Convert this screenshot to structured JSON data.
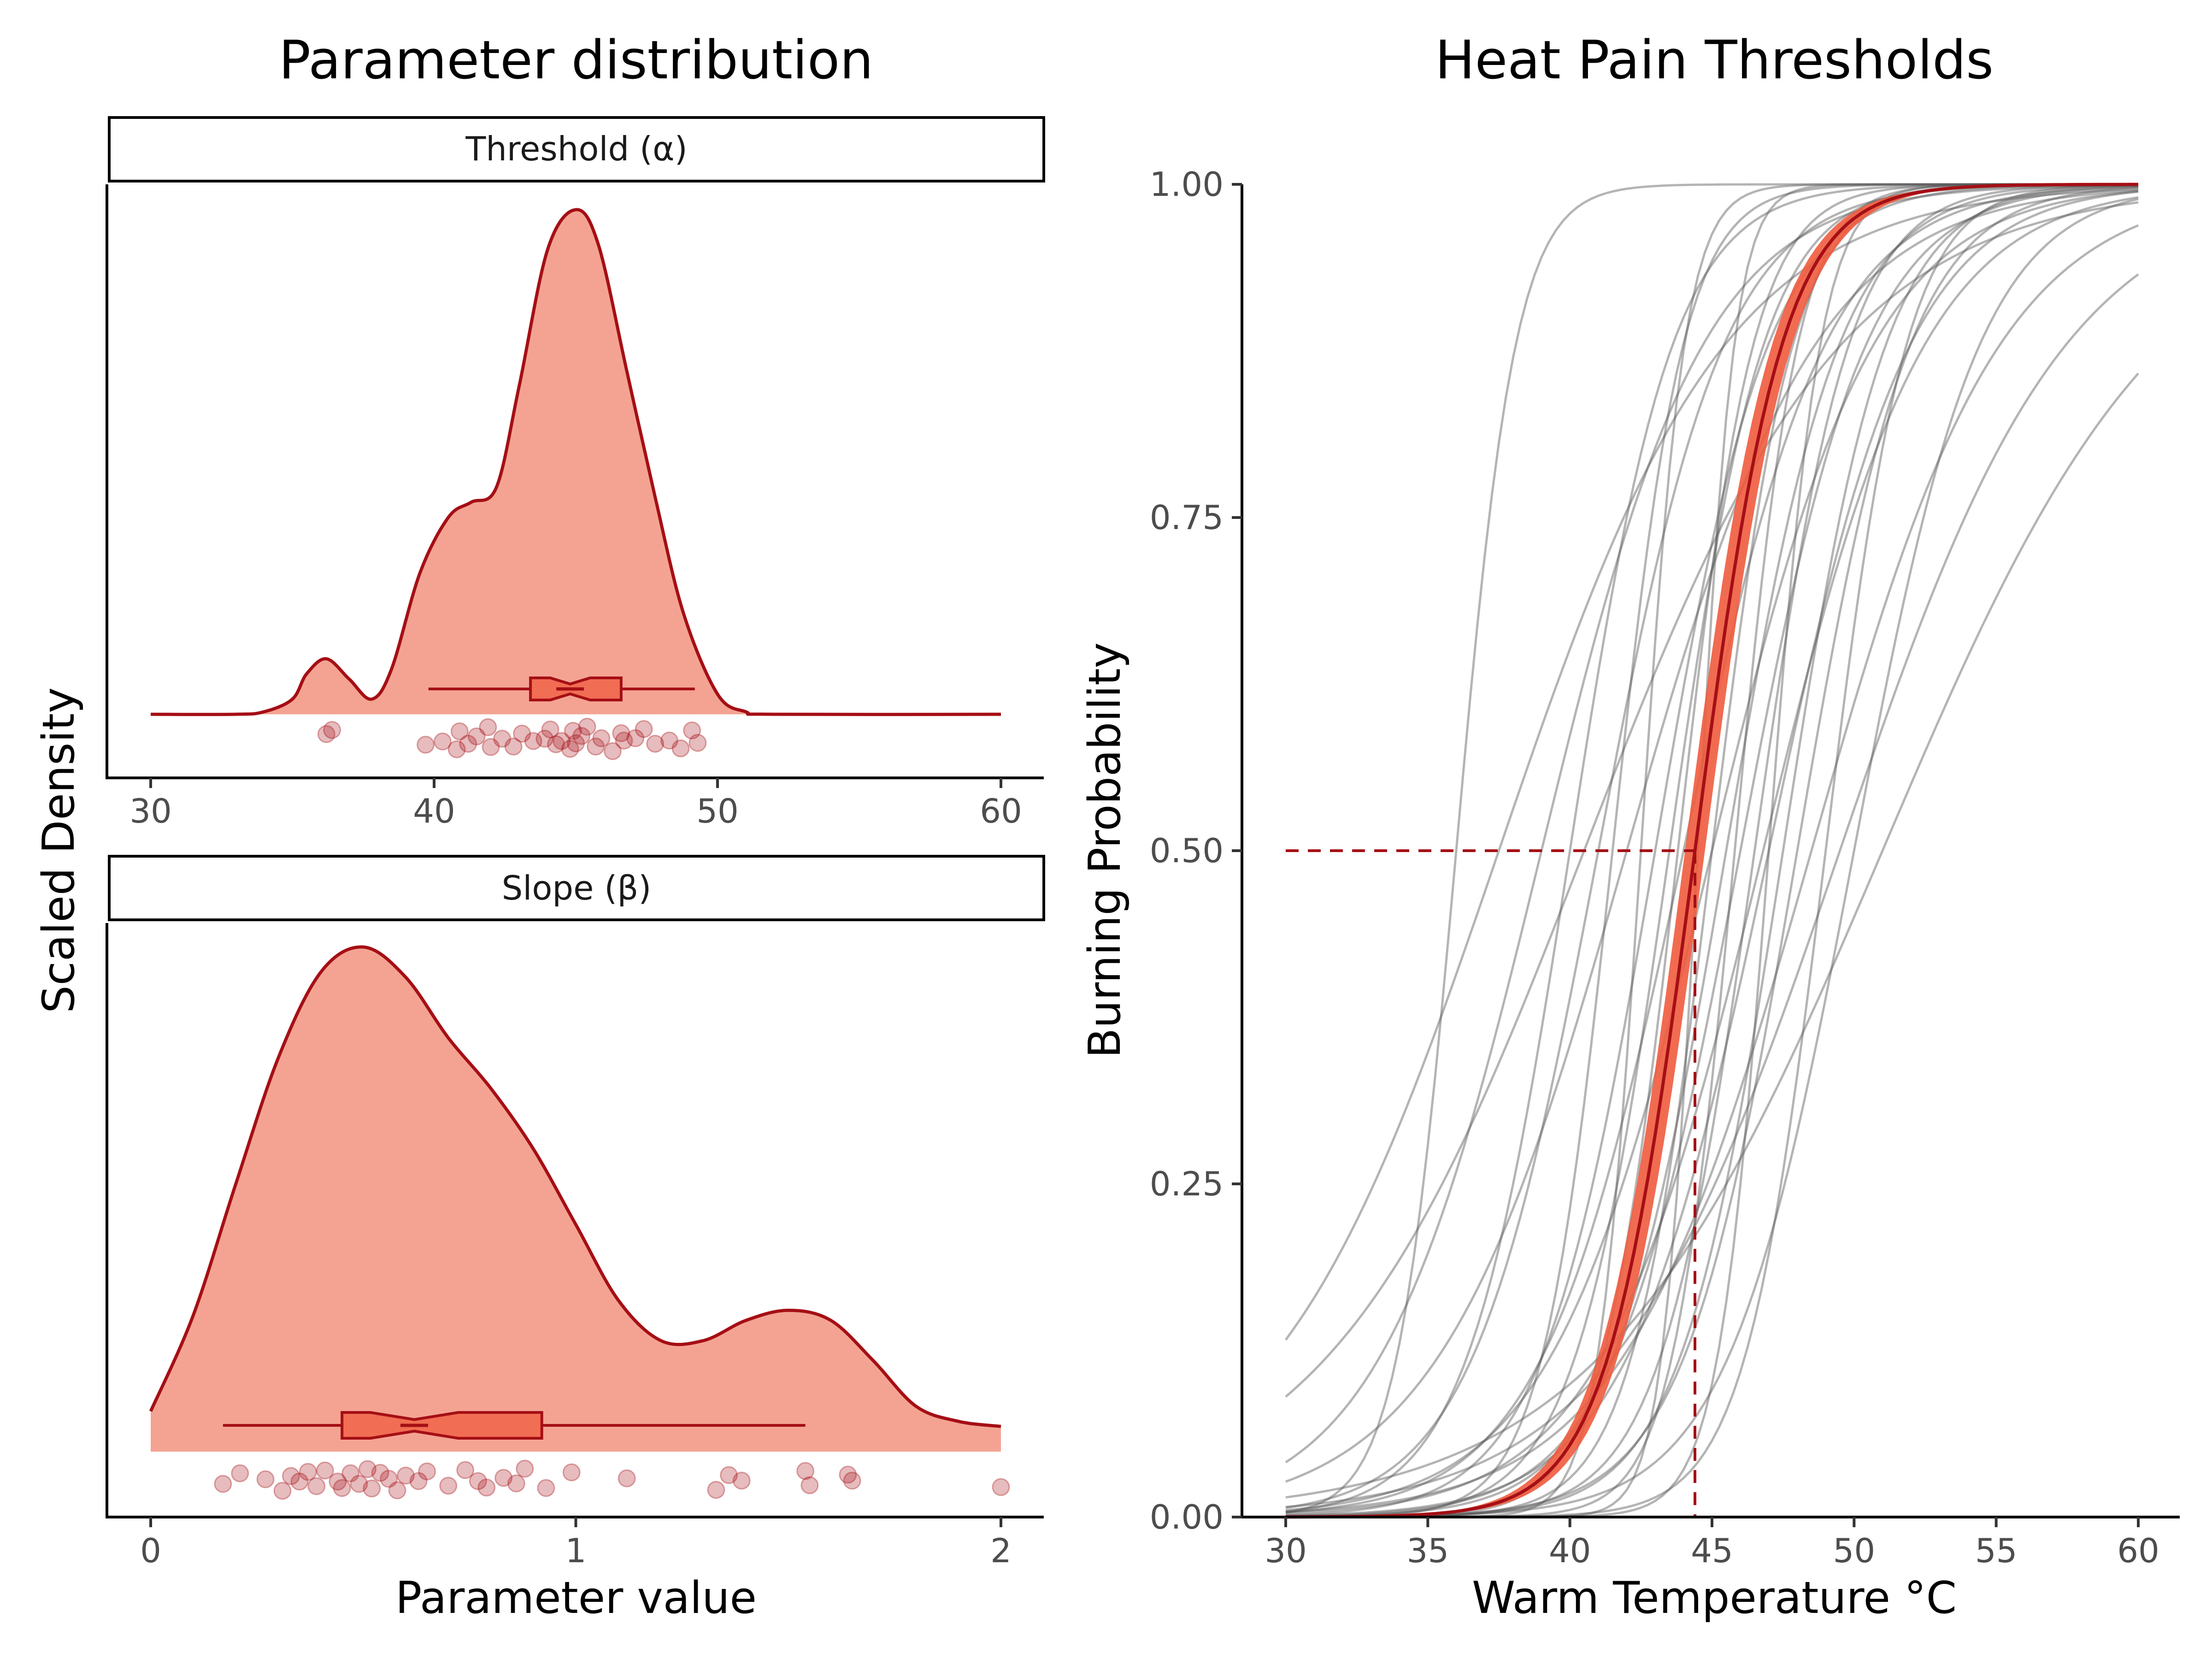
{
  "left_panel": {
    "title": "Parameter distribution",
    "ylabel": "Scaled Density",
    "xlabel": "Parameter value"
  },
  "right_panel": {
    "title": "Heat Pain Thresholds"
  },
  "colors": {
    "fill": "#f4a393",
    "line": "#a50f15",
    "band": "#f05b3e",
    "grey": "#7a7a7a"
  },
  "chart_data": [
    {
      "type": "area",
      "facet": "Threshold (α)",
      "xlim": [
        30,
        60
      ],
      "xticks": [
        30,
        40,
        50,
        60
      ],
      "density": {
        "x": [
          30,
          33,
          34,
          35,
          35.5,
          36.2,
          37,
          37.8,
          38.5,
          39.5,
          40.5,
          41.3,
          42.2,
          43,
          44,
          45,
          45.8,
          46.8,
          47.8,
          48.8,
          50,
          51,
          52,
          60
        ],
        "y": [
          0,
          0,
          0.005,
          0.03,
          0.08,
          0.11,
          0.07,
          0.03,
          0.09,
          0.28,
          0.39,
          0.42,
          0.45,
          0.65,
          0.92,
          1.0,
          0.93,
          0.68,
          0.43,
          0.2,
          0.04,
          0.005,
          0,
          0
        ]
      },
      "boxplot": {
        "whisker_low": 39.8,
        "q1": 43.4,
        "median": 44.8,
        "q3": 46.6,
        "whisker_high": 49.2
      },
      "points": [
        36.2,
        36.4,
        39.7,
        40.3,
        40.8,
        40.9,
        41.2,
        41.5,
        41.9,
        42.0,
        42.4,
        42.8,
        43.1,
        43.5,
        43.9,
        44.1,
        44.3,
        44.5,
        44.8,
        44.9,
        45.0,
        45.2,
        45.4,
        45.7,
        45.9,
        46.3,
        46.6,
        46.7,
        47.1,
        47.4,
        47.8,
        48.3,
        48.7,
        49.1,
        49.3
      ]
    },
    {
      "type": "area",
      "facet": "Slope (β)",
      "xlim": [
        0,
        2
      ],
      "xticks": [
        0,
        1,
        2
      ],
      "density": {
        "x": [
          0,
          0.1,
          0.2,
          0.3,
          0.4,
          0.5,
          0.6,
          0.7,
          0.8,
          0.9,
          1.0,
          1.1,
          1.2,
          1.3,
          1.4,
          1.5,
          1.6,
          1.7,
          1.8,
          1.9,
          2.0
        ],
        "y": [
          0.08,
          0.27,
          0.53,
          0.78,
          0.95,
          1.0,
          0.94,
          0.82,
          0.72,
          0.6,
          0.45,
          0.3,
          0.22,
          0.22,
          0.26,
          0.28,
          0.26,
          0.18,
          0.09,
          0.06,
          0.05
        ]
      },
      "boxplot": {
        "whisker_low": 0.17,
        "q1": 0.45,
        "median": 0.62,
        "q3": 0.92,
        "whisker_high": 1.54
      },
      "points": [
        0.17,
        0.21,
        0.27,
        0.31,
        0.33,
        0.35,
        0.37,
        0.39,
        0.41,
        0.44,
        0.45,
        0.47,
        0.49,
        0.51,
        0.52,
        0.54,
        0.56,
        0.58,
        0.6,
        0.63,
        0.65,
        0.7,
        0.74,
        0.77,
        0.79,
        0.83,
        0.86,
        0.88,
        0.93,
        0.99,
        1.12,
        1.33,
        1.36,
        1.39,
        1.54,
        1.55,
        1.64,
        1.65,
        2.0
      ]
    },
    {
      "type": "line",
      "xlabel": "Warm Temperature °C",
      "ylabel": "Burning Probability",
      "xlim": [
        30,
        60
      ],
      "ylim": [
        0,
        1
      ],
      "xticks": [
        30,
        35,
        40,
        45,
        50,
        55,
        60
      ],
      "yticks": [
        "0.00",
        "0.25",
        "0.50",
        "0.75",
        "1.00"
      ],
      "group_curve": {
        "alpha": 44.4,
        "beta": 0.65,
        "band_beta_spread": 0.12
      },
      "threshold_marker": {
        "x": 44.4,
        "y": 0.5
      },
      "individual_curves": [
        {
          "alpha": 36.0,
          "beta": 0.95
        },
        {
          "alpha": 37.5,
          "beta": 0.25
        },
        {
          "alpha": 39.0,
          "beta": 0.35
        },
        {
          "alpha": 40.0,
          "beta": 0.55
        },
        {
          "alpha": 40.5,
          "beta": 0.22
        },
        {
          "alpha": 41.0,
          "beta": 0.45
        },
        {
          "alpha": 41.5,
          "beta": 0.8
        },
        {
          "alpha": 42.0,
          "beta": 0.3
        },
        {
          "alpha": 42.5,
          "beta": 1.3
        },
        {
          "alpha": 43.0,
          "beta": 0.5
        },
        {
          "alpha": 43.5,
          "beta": 0.6
        },
        {
          "alpha": 44.0,
          "beta": 0.4
        },
        {
          "alpha": 44.5,
          "beta": 1.55
        },
        {
          "alpha": 45.0,
          "beta": 0.7
        },
        {
          "alpha": 45.0,
          "beta": 0.35
        },
        {
          "alpha": 45.5,
          "beta": 0.5
        },
        {
          "alpha": 45.8,
          "beta": 0.9
        },
        {
          "alpha": 46.0,
          "beta": 0.45
        },
        {
          "alpha": 46.5,
          "beta": 0.6
        },
        {
          "alpha": 47.0,
          "beta": 0.4
        },
        {
          "alpha": 47.0,
          "beta": 1.1
        },
        {
          "alpha": 47.5,
          "beta": 0.55
        },
        {
          "alpha": 48.0,
          "beta": 0.5
        },
        {
          "alpha": 48.5,
          "beta": 0.3
        },
        {
          "alpha": 49.0,
          "beta": 0.7
        },
        {
          "alpha": 49.5,
          "beta": 0.25
        },
        {
          "alpha": 50.0,
          "beta": 0.45
        },
        {
          "alpha": 51.0,
          "beta": 0.2
        },
        {
          "alpha": 43.8,
          "beta": 0.75
        },
        {
          "alpha": 46.8,
          "beta": 0.35
        }
      ]
    }
  ]
}
